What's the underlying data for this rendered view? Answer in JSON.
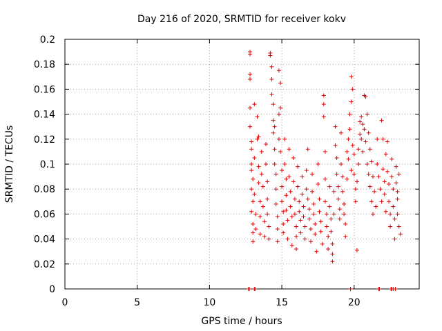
{
  "chart_data": {
    "type": "scatter",
    "title": "Day 216 of 2020, SRMTID for receiver kokv",
    "xlabel": "GPS time / hours",
    "ylabel": "SRMTID / TECUs",
    "xlim": [
      0,
      24.5
    ],
    "ylim": [
      0,
      0.2
    ],
    "xticks": [
      0,
      5,
      10,
      15,
      20
    ],
    "xtick_labels": [
      "0",
      "5",
      "10",
      "15",
      "20"
    ],
    "yticks": [
      0,
      0.02,
      0.04,
      0.06,
      0.08,
      0.1,
      0.12,
      0.14,
      0.16,
      0.18,
      0.2
    ],
    "ytick_labels": [
      "0",
      "0.02",
      "0.04",
      "0.06",
      "0.08",
      "0.1",
      "0.12",
      "0.14",
      "0.16",
      "0.18",
      "0.2"
    ],
    "grid": true,
    "marker": "plus",
    "color": "#e00000",
    "series": [
      {
        "name": "SRMTID",
        "points": [
          [
            12.8,
            0.19
          ],
          [
            12.8,
            0.188
          ],
          [
            12.8,
            0.172
          ],
          [
            12.8,
            0.168
          ],
          [
            12.8,
            0.145
          ],
          [
            12.8,
            0.13
          ],
          [
            12.9,
            0.118
          ],
          [
            12.9,
            0.112
          ],
          [
            12.9,
            0.1
          ],
          [
            12.9,
            0.095
          ],
          [
            12.9,
            0.08
          ],
          [
            12.9,
            0.062
          ],
          [
            13.0,
            0.052
          ],
          [
            13.0,
            0.045
          ],
          [
            13.0,
            0.038
          ],
          [
            13.0,
            0.07
          ],
          [
            13.0,
            0.088
          ],
          [
            13.1,
            0.148
          ],
          [
            13.1,
            0.105
          ],
          [
            13.1,
            0.076
          ],
          [
            13.2,
            0.06
          ],
          [
            13.2,
            0.048
          ],
          [
            13.3,
            0.138
          ],
          [
            13.3,
            0.12
          ],
          [
            13.4,
            0.122
          ],
          [
            13.4,
            0.098
          ],
          [
            13.4,
            0.085
          ],
          [
            13.5,
            0.07
          ],
          [
            13.5,
            0.058
          ],
          [
            13.5,
            0.044
          ],
          [
            13.6,
            0.11
          ],
          [
            13.6,
            0.092
          ],
          [
            13.7,
            0.082
          ],
          [
            13.7,
            0.066
          ],
          [
            13.8,
            0.054
          ],
          [
            13.8,
            0.042
          ],
          [
            13.9,
            0.116
          ],
          [
            13.9,
            0.1
          ],
          [
            14.0,
            0.086
          ],
          [
            14.0,
            0.072
          ],
          [
            14.0,
            0.06
          ],
          [
            14.1,
            0.05
          ],
          [
            14.1,
            0.04
          ],
          [
            14.2,
            0.189
          ],
          [
            14.2,
            0.187
          ],
          [
            14.3,
            0.178
          ],
          [
            14.3,
            0.168
          ],
          [
            14.3,
            0.156
          ],
          [
            14.4,
            0.148
          ],
          [
            14.4,
            0.135
          ],
          [
            14.4,
            0.125
          ],
          [
            14.5,
            0.13
          ],
          [
            14.5,
            0.112
          ],
          [
            14.5,
            0.1
          ],
          [
            14.6,
            0.092
          ],
          [
            14.6,
            0.08
          ],
          [
            14.6,
            0.068
          ],
          [
            14.7,
            0.058
          ],
          [
            14.7,
            0.048
          ],
          [
            14.7,
            0.038
          ],
          [
            14.8,
            0.175
          ],
          [
            14.8,
            0.14
          ],
          [
            14.8,
            0.12
          ],
          [
            14.9,
            0.165
          ],
          [
            14.9,
            0.145
          ],
          [
            14.9,
            0.11
          ],
          [
            15.0,
            0.095
          ],
          [
            15.0,
            0.082
          ],
          [
            15.0,
            0.07
          ],
          [
            15.1,
            0.062
          ],
          [
            15.1,
            0.052
          ],
          [
            15.1,
            0.045
          ],
          [
            15.2,
            0.12
          ],
          [
            15.2,
            0.1
          ],
          [
            15.3,
            0.088
          ],
          [
            15.3,
            0.075
          ],
          [
            15.3,
            0.063
          ],
          [
            15.4,
            0.055
          ],
          [
            15.4,
            0.04
          ],
          [
            15.5,
            0.112
          ],
          [
            15.5,
            0.09
          ],
          [
            15.6,
            0.078
          ],
          [
            15.6,
            0.066
          ],
          [
            15.7,
            0.058
          ],
          [
            15.7,
            0.035
          ],
          [
            15.8,
            0.105
          ],
          [
            15.8,
            0.086
          ],
          [
            15.9,
            0.072
          ],
          [
            15.9,
            0.06
          ],
          [
            16.0,
            0.05
          ],
          [
            16.0,
            0.042
          ],
          [
            16.0,
            0.032
          ],
          [
            16.1,
            0.098
          ],
          [
            16.1,
            0.082
          ],
          [
            16.2,
            0.07
          ],
          [
            16.2,
            0.062
          ],
          [
            16.3,
            0.055
          ],
          [
            16.3,
            0.045
          ],
          [
            16.4,
            0.09
          ],
          [
            16.4,
            0.076
          ],
          [
            16.5,
            0.066
          ],
          [
            16.5,
            0.058
          ],
          [
            16.6,
            0.05
          ],
          [
            16.6,
            0.04
          ],
          [
            16.7,
            0.095
          ],
          [
            16.7,
            0.08
          ],
          [
            16.8,
            0.112
          ],
          [
            16.8,
            0.072
          ],
          [
            16.9,
            0.064
          ],
          [
            16.9,
            0.056
          ],
          [
            17.0,
            0.048
          ],
          [
            17.0,
            0.038
          ],
          [
            17.1,
            0.092
          ],
          [
            17.1,
            0.078
          ],
          [
            17.2,
            0.068
          ],
          [
            17.2,
            0.06
          ],
          [
            17.3,
            0.052
          ],
          [
            17.3,
            0.044
          ],
          [
            17.4,
            0.03
          ],
          [
            17.5,
            0.1
          ],
          [
            17.5,
            0.084
          ],
          [
            17.6,
            0.072
          ],
          [
            17.6,
            0.062
          ],
          [
            17.7,
            0.054
          ],
          [
            17.7,
            0.046
          ],
          [
            17.8,
            0.036
          ],
          [
            17.9,
            0.155
          ],
          [
            17.9,
            0.148
          ],
          [
            17.9,
            0.138
          ],
          [
            18.0,
            0.11
          ],
          [
            18.0,
            0.088
          ],
          [
            18.0,
            0.07
          ],
          [
            18.1,
            0.06
          ],
          [
            18.1,
            0.05
          ],
          [
            18.2,
            0.042
          ],
          [
            18.2,
            0.032
          ],
          [
            18.3,
            0.082
          ],
          [
            18.3,
            0.066
          ],
          [
            18.4,
            0.056
          ],
          [
            18.4,
            0.046
          ],
          [
            18.5,
            0.036
          ],
          [
            18.5,
            0.028
          ],
          [
            18.5,
            0.022
          ],
          [
            18.6,
            0.078
          ],
          [
            18.6,
            0.06
          ],
          [
            18.7,
            0.13
          ],
          [
            18.7,
            0.115
          ],
          [
            18.8,
            0.105
          ],
          [
            18.8,
            0.092
          ],
          [
            18.9,
            0.082
          ],
          [
            18.9,
            0.072
          ],
          [
            19.0,
            0.064
          ],
          [
            19.0,
            0.056
          ],
          [
            19.1,
            0.125
          ],
          [
            19.1,
            0.1
          ],
          [
            19.2,
            0.09
          ],
          [
            19.2,
            0.078
          ],
          [
            19.3,
            0.068
          ],
          [
            19.3,
            0.06
          ],
          [
            19.4,
            0.052
          ],
          [
            19.4,
            0.042
          ],
          [
            19.5,
            0.11
          ],
          [
            19.5,
            0.088
          ],
          [
            19.6,
            0.12
          ],
          [
            19.6,
            0.104
          ],
          [
            19.7,
            0.14
          ],
          [
            19.7,
            0.128
          ],
          [
            19.8,
            0.15
          ],
          [
            19.8,
            0.17
          ],
          [
            19.8,
            0.095
          ],
          [
            19.9,
            0.16
          ],
          [
            19.9,
            0.115
          ],
          [
            20.0,
            0.108
          ],
          [
            20.0,
            0.092
          ],
          [
            20.1,
            0.08
          ],
          [
            20.1,
            0.07
          ],
          [
            20.2,
            0.031
          ],
          [
            20.2,
            0.086
          ],
          [
            20.3,
            0.1
          ],
          [
            20.3,
            0.112
          ],
          [
            20.4,
            0.124
          ],
          [
            20.4,
            0.134
          ],
          [
            20.5,
            0.138
          ],
          [
            20.5,
            0.12
          ],
          [
            20.6,
            0.132
          ],
          [
            20.6,
            0.11
          ],
          [
            20.7,
            0.155
          ],
          [
            20.7,
            0.128
          ],
          [
            20.8,
            0.154
          ],
          [
            20.8,
            0.118
          ],
          [
            20.9,
            0.14
          ],
          [
            20.9,
            0.1
          ],
          [
            21.0,
            0.125
          ],
          [
            21.0,
            0.092
          ],
          [
            21.1,
            0.112
          ],
          [
            21.1,
            0.082
          ],
          [
            21.2,
            0.102
          ],
          [
            21.2,
            0.07
          ],
          [
            21.3,
            0.09
          ],
          [
            21.3,
            0.06
          ],
          [
            21.4,
            0.078
          ],
          [
            21.5,
            0.066
          ],
          [
            21.6,
            0.12
          ],
          [
            21.6,
            0.1
          ],
          [
            21.7,
            0.09
          ],
          [
            21.8,
            0.08
          ],
          [
            21.9,
            0.135
          ],
          [
            21.9,
            0.07
          ],
          [
            22.0,
            0.12
          ],
          [
            22.0,
            0.096
          ],
          [
            22.1,
            0.086
          ],
          [
            22.1,
            0.076
          ],
          [
            22.2,
            0.062
          ],
          [
            22.2,
            0.108
          ],
          [
            22.3,
            0.118
          ],
          [
            22.3,
            0.094
          ],
          [
            22.4,
            0.084
          ],
          [
            22.4,
            0.07
          ],
          [
            22.5,
            0.06
          ],
          [
            22.5,
            0.05
          ],
          [
            22.6,
            0.104
          ],
          [
            22.6,
            0.09
          ],
          [
            22.7,
            0.08
          ],
          [
            22.7,
            0.066
          ],
          [
            22.8,
            0.056
          ],
          [
            22.8,
            0.04
          ],
          [
            22.9,
            0.098
          ],
          [
            22.9,
            0.085
          ],
          [
            23.0,
            0.078
          ],
          [
            23.0,
            0.072
          ],
          [
            23.0,
            0.06
          ],
          [
            23.1,
            0.092
          ],
          [
            23.1,
            0.05
          ],
          [
            23.2,
            0.044
          ]
        ],
        "zero_points_x": [
          12.7,
          12.75,
          13.1,
          13.15,
          19.75,
          21.7,
          21.75,
          22.55,
          22.6,
          22.7,
          22.85
        ]
      }
    ]
  }
}
